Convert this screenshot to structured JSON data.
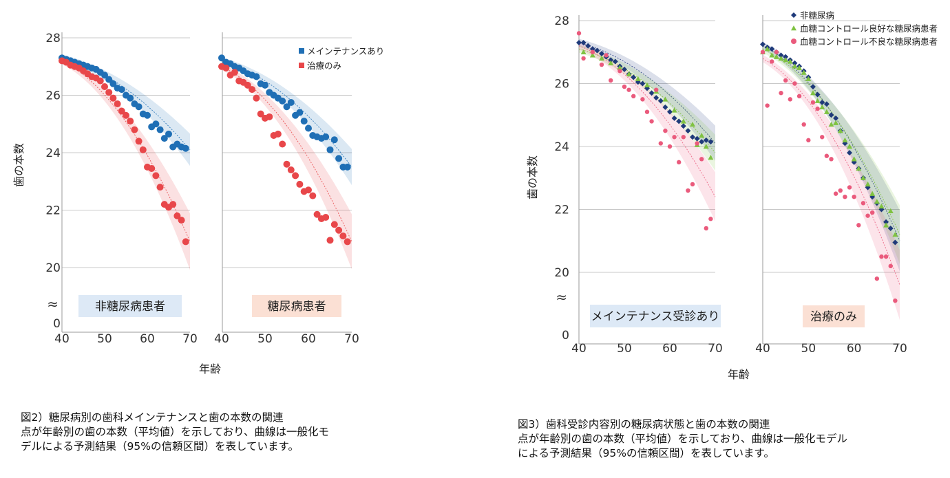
{
  "chart_data": [
    {
      "id": "fig2",
      "type": "scatter",
      "ylabel": "歯の本数",
      "xlabel": "年齢",
      "xlim": [
        40,
        70
      ],
      "ylim": [
        20,
        28
      ],
      "x_ticks": [
        "40",
        "50",
        "60",
        "70"
      ],
      "y_ticks": [
        "20",
        "22",
        "24",
        "26",
        "28"
      ],
      "y_zero_label": "0",
      "axis_break": "≈",
      "legend": [
        {
          "name": "メインテナンスあり",
          "color": "#1f6fb5"
        },
        {
          "name": "治療のみ",
          "color": "#e8474a"
        }
      ],
      "panels": [
        {
          "label": "非糖尿病患者",
          "series": [
            {
              "name": "メインテナンスあり",
              "color": "#1f6fb5",
              "x": [
                40,
                41,
                42,
                43,
                44,
                45,
                46,
                47,
                48,
                49,
                50,
                51,
                52,
                53,
                54,
                55,
                56,
                57,
                58,
                59,
                60,
                61,
                62,
                63,
                64,
                65,
                66,
                67,
                68,
                69
              ],
              "y": [
                27.3,
                27.25,
                27.2,
                27.15,
                27.1,
                27.05,
                27.0,
                26.95,
                26.9,
                26.8,
                26.7,
                26.55,
                26.4,
                26.25,
                26.2,
                26.0,
                25.9,
                25.7,
                25.6,
                25.35,
                25.3,
                24.9,
                25.0,
                24.8,
                24.5,
                24.65,
                24.2,
                24.3,
                24.2,
                24.15
              ],
              "fit_start": 27.3,
              "fit_end": 24.1
            },
            {
              "name": "治療のみ",
              "color": "#e8474a",
              "x": [
                40,
                41,
                42,
                43,
                44,
                45,
                46,
                47,
                48,
                49,
                50,
                51,
                52,
                53,
                54,
                55,
                56,
                57,
                58,
                59,
                60,
                61,
                62,
                63,
                64,
                65,
                66,
                67,
                68,
                69
              ],
              "y": [
                27.2,
                27.15,
                27.05,
                27.0,
                26.95,
                26.85,
                26.75,
                26.65,
                26.6,
                26.5,
                26.3,
                26.1,
                25.9,
                25.7,
                25.45,
                25.3,
                25.1,
                24.8,
                24.4,
                24.1,
                23.5,
                23.45,
                23.2,
                22.8,
                22.2,
                22.1,
                22.2,
                21.8,
                21.65,
                20.9
              ],
              "fit_start": 27.2,
              "fit_end": 20.9
            }
          ]
        },
        {
          "label": "糖尿病患者",
          "series": [
            {
              "name": "メインテナンスあり",
              "color": "#1f6fb5",
              "x": [
                40,
                41,
                42,
                43,
                44,
                45,
                46,
                47,
                48,
                49,
                50,
                51,
                52,
                53,
                54,
                55,
                56,
                57,
                58,
                59,
                60,
                61,
                62,
                63,
                64,
                65,
                66,
                67,
                68,
                69
              ],
              "y": [
                27.3,
                27.15,
                27.1,
                27.0,
                26.95,
                26.85,
                26.75,
                26.7,
                26.65,
                26.4,
                26.35,
                26.1,
                26.0,
                25.9,
                25.8,
                25.6,
                25.75,
                25.3,
                25.4,
                25.1,
                24.85,
                24.6,
                24.55,
                24.5,
                24.55,
                24.1,
                24.45,
                23.8,
                23.5,
                23.5
              ],
              "fit_start": 27.2,
              "fit_end": 23.5
            },
            {
              "name": "治療のみ",
              "color": "#e8474a",
              "x": [
                40,
                41,
                42,
                43,
                44,
                45,
                46,
                47,
                48,
                49,
                50,
                51,
                52,
                53,
                54,
                55,
                56,
                57,
                58,
                59,
                60,
                61,
                62,
                63,
                64,
                65,
                66,
                67,
                68,
                69
              ],
              "y": [
                27.0,
                26.95,
                26.7,
                26.8,
                26.5,
                26.45,
                26.35,
                26.2,
                25.9,
                25.35,
                25.2,
                25.25,
                24.6,
                24.65,
                24.3,
                23.6,
                23.4,
                23.2,
                22.9,
                22.65,
                22.7,
                22.5,
                21.85,
                21.7,
                21.75,
                20.95,
                21.5,
                21.3,
                21.1,
                20.9
              ],
              "fit_start": 27.0,
              "fit_end": 20.9
            }
          ]
        }
      ]
    },
    {
      "id": "fig3",
      "type": "scatter",
      "ylabel": "歯の本数",
      "xlabel": "年齢",
      "xlim": [
        40,
        70
      ],
      "ylim": [
        20,
        28
      ],
      "x_ticks": [
        "40",
        "50",
        "60",
        "70"
      ],
      "y_ticks": [
        "20",
        "22",
        "24",
        "26",
        "28"
      ],
      "y_zero_label": "0",
      "axis_break": "≈",
      "legend": [
        {
          "name": "非糖尿病",
          "color": "#1f3a7a",
          "marker": "diamond"
        },
        {
          "name": "血糖コントロール良好な糖尿病患者",
          "color": "#7fc241",
          "marker": "triangle"
        },
        {
          "name": "血糖コントロール不良な糖尿病患者",
          "color": "#ea5a7c",
          "marker": "circle"
        }
      ],
      "panels": [
        {
          "label": "メインテナンス受診あり",
          "series": [
            {
              "name": "非糖尿病",
              "color": "#1f3a7a",
              "marker": "diamond",
              "x": [
                40,
                41,
                42,
                43,
                44,
                45,
                46,
                47,
                48,
                49,
                50,
                51,
                52,
                53,
                54,
                55,
                56,
                57,
                58,
                59,
                60,
                61,
                62,
                63,
                64,
                65,
                66,
                67,
                68,
                69
              ],
              "y": [
                27.3,
                27.3,
                27.2,
                27.1,
                27.05,
                26.95,
                26.85,
                26.75,
                26.7,
                26.55,
                26.45,
                26.3,
                26.2,
                26.05,
                26.0,
                25.85,
                25.7,
                25.55,
                25.45,
                25.25,
                25.1,
                24.9,
                24.8,
                24.65,
                24.5,
                24.3,
                24.25,
                24.15,
                24.2,
                24.15
              ],
              "fit_start": 27.3,
              "fit_end": 24.1
            },
            {
              "name": "血糖コントロール良好な糖尿病患者",
              "color": "#7fc241",
              "marker": "triangle",
              "x": [
                41,
                43,
                45,
                47,
                49,
                51,
                53,
                55,
                57,
                59,
                61,
                63,
                65,
                66,
                67,
                68,
                69
              ],
              "y": [
                27.0,
                26.9,
                26.8,
                26.65,
                26.5,
                26.3,
                26.15,
                25.95,
                25.75,
                25.5,
                25.15,
                24.8,
                24.7,
                24.05,
                24.35,
                24.0,
                23.65
              ],
              "fit_start": 27.1,
              "fit_end": 23.8
            },
            {
              "name": "血糖コントロール不良な糖尿病患者",
              "color": "#ea5a7c",
              "marker": "circle",
              "x": [
                40,
                41,
                43,
                45,
                46,
                47,
                49,
                50,
                51,
                52,
                54,
                55,
                56,
                57,
                58,
                59,
                60,
                61,
                62,
                63,
                64,
                65,
                66,
                67,
                68,
                69
              ],
              "y": [
                27.6,
                26.8,
                27.0,
                26.6,
                26.9,
                26.1,
                26.4,
                25.9,
                25.8,
                25.6,
                25.5,
                25.1,
                24.8,
                25.8,
                24.1,
                24.5,
                24.0,
                24.3,
                23.5,
                24.3,
                22.6,
                22.8,
                24.1,
                23.6,
                21.4,
                21.7
              ],
              "fit_start": 27.2,
              "fit_end": 22.4
            }
          ]
        },
        {
          "label": "治療のみ",
          "series": [
            {
              "name": "非糖尿病",
              "color": "#1f3a7a",
              "marker": "diamond",
              "x": [
                40,
                41,
                42,
                43,
                44,
                45,
                46,
                47,
                48,
                49,
                50,
                51,
                52,
                53,
                54,
                55,
                56,
                57,
                58,
                59,
                60,
                61,
                62,
                63,
                64,
                65,
                66,
                67,
                68,
                69
              ],
              "y": [
                27.25,
                27.15,
                27.1,
                27.0,
                26.9,
                26.85,
                26.75,
                26.65,
                26.55,
                26.4,
                26.2,
                25.9,
                25.65,
                25.4,
                25.35,
                25.0,
                24.9,
                24.5,
                24.1,
                23.8,
                23.5,
                23.3,
                23.0,
                22.7,
                22.4,
                22.2,
                22.0,
                21.6,
                21.4,
                20.95
              ],
              "fit_start": 27.2,
              "fit_end": 21.0
            },
            {
              "name": "血糖コントロール良好な糖尿病患者",
              "color": "#7fc241",
              "marker": "triangle",
              "x": [
                40,
                41,
                42,
                43,
                44,
                45,
                46,
                47,
                48,
                49,
                50,
                51,
                52,
                53,
                54,
                55,
                56,
                57,
                58,
                59,
                60,
                61,
                62,
                63,
                64,
                65,
                66,
                67,
                68,
                69
              ],
              "y": [
                27.0,
                27.1,
                26.9,
                26.85,
                26.8,
                26.75,
                26.7,
                26.55,
                26.5,
                26.35,
                26.15,
                25.7,
                25.45,
                25.25,
                25.1,
                24.7,
                24.75,
                24.5,
                24.2,
                24.0,
                23.6,
                23.3,
                23.0,
                22.8,
                22.5,
                22.25,
                22.1,
                21.5,
                21.95,
                21.2
              ],
              "fit_start": 27.1,
              "fit_end": 21.2
            },
            {
              "name": "血糖コントロール不良な糖尿病患者",
              "color": "#ea5a7c",
              "marker": "circle",
              "x": [
                40,
                41,
                42,
                43,
                44,
                45,
                46,
                47,
                48,
                49,
                50,
                51,
                52,
                53,
                54,
                55,
                56,
                57,
                58,
                59,
                60,
                61,
                62,
                63,
                64,
                65,
                66,
                67,
                68,
                69
              ],
              "y": [
                27.0,
                25.3,
                26.7,
                27.0,
                25.7,
                26.1,
                25.5,
                26.0,
                25.6,
                24.7,
                24.2,
                25.4,
                25.2,
                24.3,
                23.7,
                23.6,
                22.5,
                22.6,
                22.4,
                22.7,
                22.4,
                21.5,
                22.2,
                21.8,
                21.9,
                19.8,
                20.5,
                20.5,
                20.2,
                19.1
              ],
              "fit_start": 26.8,
              "fit_end": 19.6
            }
          ]
        }
      ]
    }
  ],
  "captions": {
    "fig2": [
      "図2）糖尿病別の歯科メインテナンスと歯の本数の関連",
      "点が年齢別の歯の本数（平均値）を示しており、曲線は一般化モ",
      "デルによる予測結果（95%の信頼区間）を表しています。"
    ],
    "fig3": [
      "図3）歯科受診内容別の糖尿病状態と歯の本数の関連",
      "点が年齢別の歯の本数（平均値）を示しており、曲線は一般化モデル",
      "による予測結果（95%の信頼区間）を表しています。"
    ]
  }
}
